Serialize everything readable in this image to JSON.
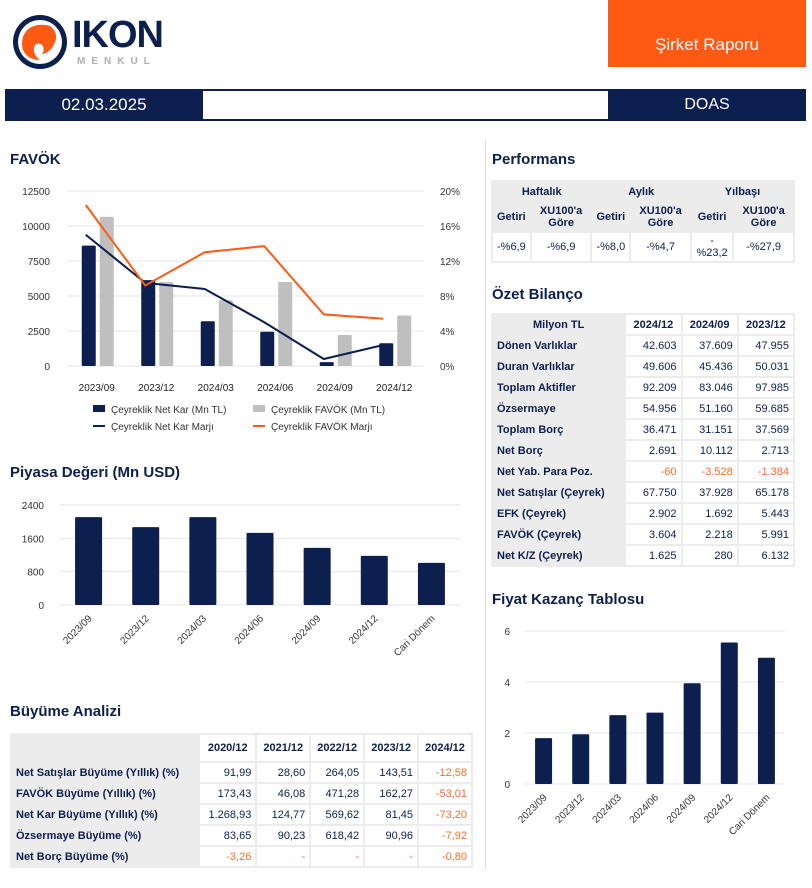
{
  "header": {
    "brand": "IKON",
    "brand_sub": "MENKUL",
    "report_title": "Şirket Raporu",
    "date": "02.03.2025",
    "ticker": "DOAS"
  },
  "colors": {
    "navy": "#0d1f4f",
    "orange": "#ff5a14",
    "gray": "#bfbfbf"
  },
  "sections": {
    "favok": "FAVÖK",
    "market_cap": "Piyasa Değeri (Mn USD)",
    "growth": "Büyüme Analizi",
    "performance": "Performans",
    "balance": "Özet Bilanço",
    "pe": "Fiyat Kazanç Tablosu"
  },
  "performance": {
    "groups": [
      "Haftalık",
      "Aylık",
      "Yılbaşı"
    ],
    "subheaders": [
      "Getiri",
      "XU100'a Göre",
      "Getiri",
      "XU100'a Göre",
      "Getiri",
      "XU100'a Göre"
    ],
    "values": [
      "-%6,9",
      "-%6,9",
      "-%8,0",
      "-%4,7",
      "-%23,2",
      "-%27,9"
    ]
  },
  "balance": {
    "corner": "Milyon TL",
    "columns": [
      "2024/12",
      "2024/09",
      "2023/12"
    ],
    "rows": [
      {
        "label": "Dönen Varlıklar",
        "values": [
          "42.603",
          "37.609",
          "47.955"
        ]
      },
      {
        "label": "Duran Varlıklar",
        "values": [
          "49.606",
          "45.436",
          "50.031"
        ]
      },
      {
        "label": "Toplam Aktifler",
        "values": [
          "92.209",
          "83.046",
          "97.985"
        ]
      },
      {
        "label": "Özsermaye",
        "values": [
          "54.956",
          "51.160",
          "59.685"
        ]
      },
      {
        "label": "Toplam Borç",
        "values": [
          "36.471",
          "31.151",
          "37.569"
        ]
      },
      {
        "label": "Net Borç",
        "values": [
          "2.691",
          "10.112",
          "2.713"
        ]
      },
      {
        "label": "Net Yab. Para Poz.",
        "values": [
          "-60",
          "-3.528",
          "-1.384"
        ]
      },
      {
        "label": "Net Satışlar (Çeyrek)",
        "values": [
          "67.750",
          "37.928",
          "65.178"
        ]
      },
      {
        "label": "EFK (Çeyrek)",
        "values": [
          "2.902",
          "1.692",
          "5.443"
        ]
      },
      {
        "label": "FAVÖK (Çeyrek)",
        "values": [
          "3.604",
          "2.218",
          "5.991"
        ]
      },
      {
        "label": "Net K/Z (Çeyrek)",
        "values": [
          "1.625",
          "280",
          "6.132"
        ]
      }
    ]
  },
  "growth": {
    "columns": [
      "2020/12",
      "2021/12",
      "2022/12",
      "2023/12",
      "2024/12"
    ],
    "rows": [
      {
        "label": "Net Satışlar Büyüme (Yıllık) (%)",
        "values": [
          "91,99",
          "28,60",
          "264,05",
          "143,51",
          "-12,58"
        ]
      },
      {
        "label": "FAVÖK Büyüme (Yıllık) (%)",
        "values": [
          "173,43",
          "46,08",
          "471,28",
          "162,27",
          "-53,01"
        ]
      },
      {
        "label": "Net Kar Büyüme (Yıllık) (%)",
        "values": [
          "1.268,93",
          "124,77",
          "569,62",
          "81,45",
          "-73,20"
        ]
      },
      {
        "label": "Özsermaye Büyüme (%)",
        "values": [
          "83,65",
          "90,23",
          "618,42",
          "90,96",
          "-7,92"
        ]
      },
      {
        "label": "Net Borç Büyüme (%)",
        "values": [
          "-3,26",
          "-",
          "-",
          "-",
          "-0,80"
        ]
      }
    ]
  },
  "chart_data": [
    {
      "type": "bar+line",
      "categories": [
        "2023/09",
        "2023/12",
        "2024/03",
        "2024/06",
        "2024/09",
        "2024/12"
      ],
      "y_ticks": [
        "0",
        "2500",
        "5000",
        "7500",
        "10000",
        "12500"
      ],
      "y2_ticks": [
        "0%",
        "4%",
        "8%",
        "12%",
        "16%",
        "20%"
      ],
      "ylim": [
        0,
        12500
      ],
      "y2lim": [
        0,
        20
      ],
      "grid": true,
      "legend": "bottom",
      "series": [
        {
          "name": "Çeyreklik Net Kar (Mn TL)",
          "type": "bar",
          "color": "#0d1f4f",
          "values": [
            8600,
            6132,
            3200,
            2450,
            280,
            1625
          ]
        },
        {
          "name": "Çeyreklik FAVÖK (Mn TL)",
          "type": "bar",
          "color": "#bfbfbf",
          "values": [
            10650,
            5991,
            4700,
            6000,
            2218,
            3604
          ]
        },
        {
          "name": "Çeyreklik Net Kar Marjı",
          "type": "line",
          "axis": "right",
          "color": "#0d1f4f",
          "values": [
            15.0,
            9.5,
            8.8,
            5.0,
            0.8,
            2.4
          ]
        },
        {
          "name": "Çeyreklik FAVÖK Marjı",
          "type": "line",
          "axis": "right",
          "color": "#ff5a14",
          "values": [
            18.4,
            9.2,
            13.0,
            13.7,
            5.9,
            5.4
          ]
        }
      ]
    },
    {
      "type": "bar",
      "categories": [
        "2023/09",
        "2023/12",
        "2024/03",
        "2024/06",
        "2024/09",
        "2024/12",
        "Cari Dönem"
      ],
      "values": [
        2110,
        1870,
        2110,
        1730,
        1370,
        1180,
        1010
      ],
      "y_ticks": [
        "0",
        "800",
        "1600",
        "2400"
      ],
      "ylim": [
        0,
        2400
      ],
      "grid": true,
      "color": "#0d1f4f"
    },
    {
      "type": "bar",
      "categories": [
        "2023/09",
        "2023/12",
        "2024/03",
        "2024/06",
        "2024/09",
        "2024/12",
        "Cari Dönem"
      ],
      "values": [
        1.8,
        1.95,
        2.7,
        2.8,
        3.95,
        5.55,
        4.95
      ],
      "y_ticks": [
        "0",
        "2",
        "4",
        "6"
      ],
      "ylim": [
        0,
        6
      ],
      "grid": true,
      "color": "#0d1f4f"
    }
  ]
}
